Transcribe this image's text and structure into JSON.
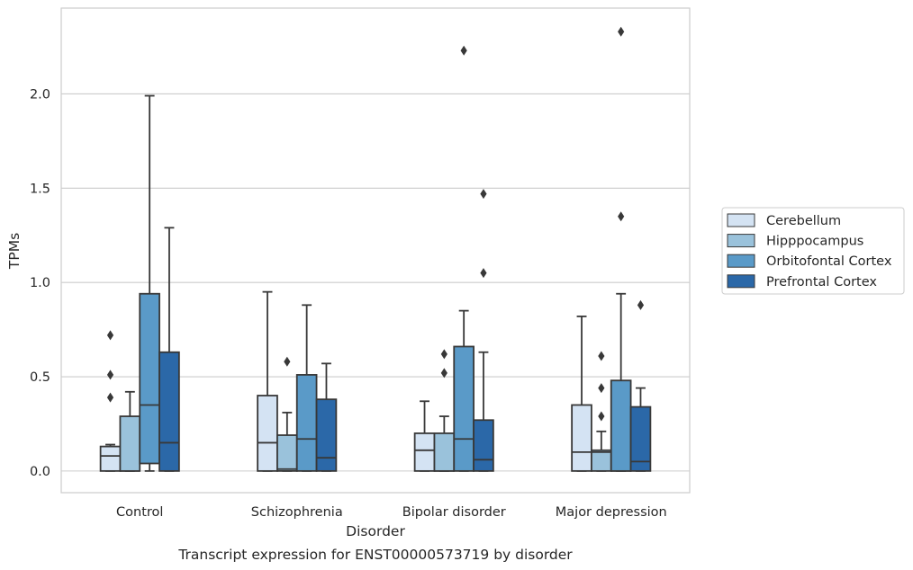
{
  "chart_data": {
    "type": "box",
    "caption": "Transcript expression for ENST00000573719 by disorder",
    "xlabel": "Disorder",
    "ylabel": "TPMs",
    "ylim": [
      -0.115,
      2.455
    ],
    "yticks": [
      0.0,
      0.5,
      1.0,
      1.5,
      2.0
    ],
    "ytick_labels": [
      "0.0",
      "0.5",
      "1.0",
      "1.5",
      "2.0"
    ],
    "grid": "horizontal",
    "legend_position": "right",
    "categories": [
      "Control",
      "Schizophrenia",
      "Bipolar disorder",
      "Major depression"
    ],
    "series": [
      {
        "name": "Cerebellum",
        "color": "#d4e3f3",
        "boxes": [
          {
            "q1": 0.0,
            "median": 0.08,
            "q3": 0.13,
            "whisker_low": 0.0,
            "whisker_high": 0.14,
            "outliers": [
              0.39,
              0.51,
              0.72
            ]
          },
          {
            "q1": 0.0,
            "median": 0.15,
            "q3": 0.4,
            "whisker_low": 0.0,
            "whisker_high": 0.95,
            "outliers": []
          },
          {
            "q1": 0.0,
            "median": 0.11,
            "q3": 0.2,
            "whisker_low": 0.0,
            "whisker_high": 0.37,
            "outliers": []
          },
          {
            "q1": 0.0,
            "median": 0.1,
            "q3": 0.35,
            "whisker_low": 0.0,
            "whisker_high": 0.82,
            "outliers": []
          }
        ]
      },
      {
        "name": "Hipppocampus",
        "color": "#9ac2db",
        "boxes": [
          {
            "q1": 0.0,
            "median": 0.0,
            "q3": 0.29,
            "whisker_low": 0.0,
            "whisker_high": 0.42,
            "outliers": []
          },
          {
            "q1": 0.0,
            "median": 0.01,
            "q3": 0.19,
            "whisker_low": 0.0,
            "whisker_high": 0.31,
            "outliers": [
              0.58
            ]
          },
          {
            "q1": 0.0,
            "median": 0.0,
            "q3": 0.2,
            "whisker_low": 0.0,
            "whisker_high": 0.29,
            "outliers": [
              0.52,
              0.62
            ]
          },
          {
            "q1": 0.0,
            "median": 0.1,
            "q3": 0.11,
            "whisker_low": 0.0,
            "whisker_high": 0.21,
            "outliers": [
              0.29,
              0.44,
              0.61
            ]
          }
        ]
      },
      {
        "name": "Orbitofontal Cortex",
        "color": "#5a9ac8",
        "boxes": [
          {
            "q1": 0.04,
            "median": 0.35,
            "q3": 0.94,
            "whisker_low": 0.0,
            "whisker_high": 1.99,
            "outliers": []
          },
          {
            "q1": 0.0,
            "median": 0.17,
            "q3": 0.51,
            "whisker_low": 0.0,
            "whisker_high": 0.88,
            "outliers": []
          },
          {
            "q1": 0.0,
            "median": 0.17,
            "q3": 0.66,
            "whisker_low": 0.0,
            "whisker_high": 0.85,
            "outliers": [
              2.23
            ]
          },
          {
            "q1": 0.0,
            "median": 0.0,
            "q3": 0.48,
            "whisker_low": 0.0,
            "whisker_high": 0.94,
            "outliers": [
              1.35,
              2.33
            ]
          }
        ]
      },
      {
        "name": "Prefrontal Cortex",
        "color": "#2b68a8",
        "boxes": [
          {
            "q1": 0.0,
            "median": 0.15,
            "q3": 0.63,
            "whisker_low": 0.0,
            "whisker_high": 1.29,
            "outliers": []
          },
          {
            "q1": 0.0,
            "median": 0.07,
            "q3": 0.38,
            "whisker_low": 0.0,
            "whisker_high": 0.57,
            "outliers": []
          },
          {
            "q1": 0.0,
            "median": 0.06,
            "q3": 0.27,
            "whisker_low": 0.0,
            "whisker_high": 0.63,
            "outliers": [
              1.05,
              1.47
            ]
          },
          {
            "q1": 0.0,
            "median": 0.05,
            "q3": 0.34,
            "whisker_low": 0.0,
            "whisker_high": 0.44,
            "outliers": [
              0.88
            ]
          }
        ]
      }
    ],
    "colors": {
      "grid": "#cccccc",
      "frame": "#cccccc",
      "box_edge": "#383838",
      "outlier": "#383838",
      "legend_border": "#cccccc"
    }
  }
}
